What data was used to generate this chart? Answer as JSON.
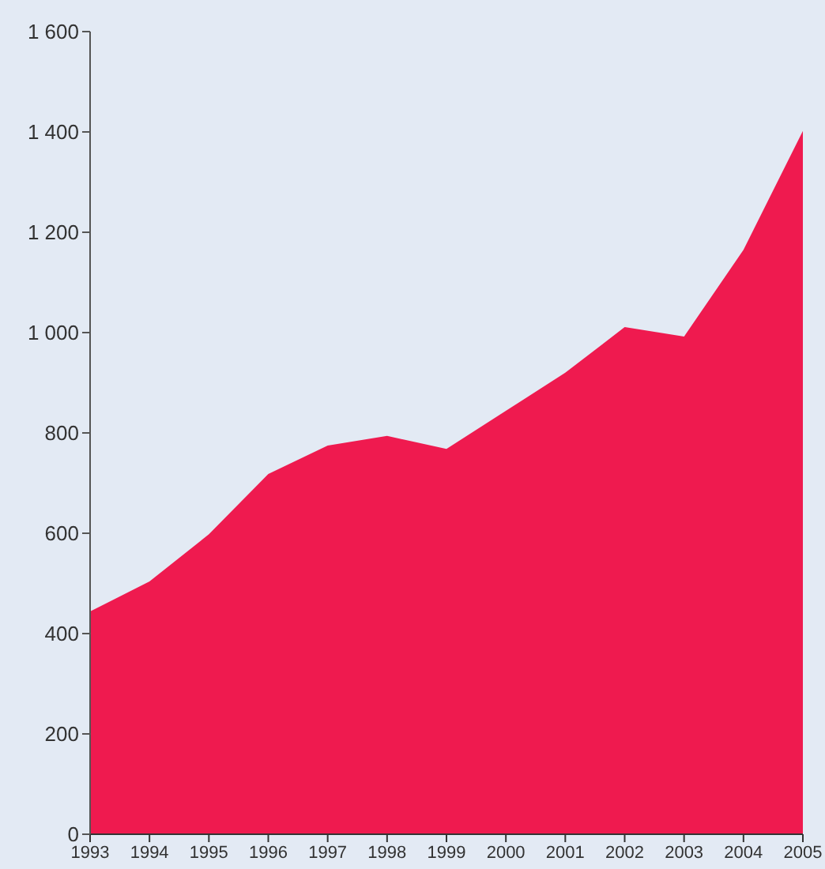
{
  "chart_data": {
    "type": "area",
    "x": [
      1993,
      1994,
      1995,
      1996,
      1997,
      1998,
      1999,
      2000,
      2001,
      2002,
      2003,
      2004,
      2005
    ],
    "values": [
      444,
      504,
      598,
      718,
      775,
      794,
      768,
      844,
      920,
      1011,
      992,
      1165,
      1402
    ],
    "color": "#ef1a4f",
    "xlim": [
      1993,
      2005
    ],
    "xticks": [
      1993,
      1994,
      1995,
      1996,
      1997,
      1998,
      1999,
      2000,
      2001,
      2002,
      2003,
      2004,
      2005
    ],
    "ylim": [
      0,
      1600
    ],
    "yticks": [
      0,
      200,
      400,
      600,
      800,
      {
        "value": 1000,
        "label": "1 000"
      },
      {
        "value": 1200,
        "label": "1 200"
      },
      {
        "value": 1400,
        "label": "1 400"
      },
      {
        "value": 1600,
        "label": "1 600"
      }
    ],
    "grid": false
  }
}
